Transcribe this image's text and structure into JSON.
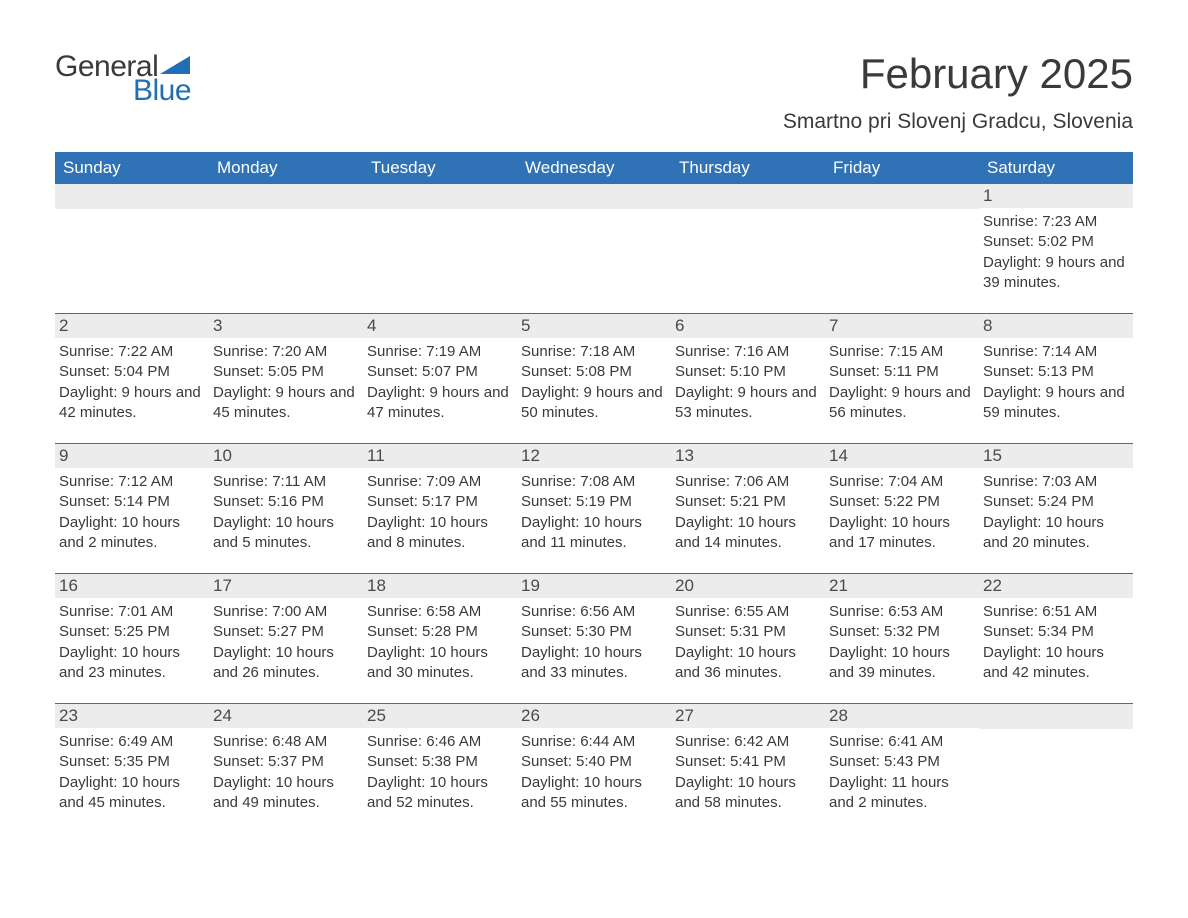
{
  "logo": {
    "text1": "General",
    "text2": "Blue",
    "text_color1": "#3a3a3a",
    "text_color2": "#1f6fb2",
    "shape_color": "#1f6fb2"
  },
  "header": {
    "month_title": "February 2025",
    "location": "Smartno pri Slovenj Gradcu, Slovenia"
  },
  "colors": {
    "header_bg": "#2f73b6",
    "header_text": "#ffffff",
    "daynum_bg": "#ececec",
    "body_text": "#3a3a3a",
    "row_border": "#2f73b6",
    "page_bg": "#ffffff"
  },
  "typography": {
    "month_title_fontsize": 42,
    "location_fontsize": 21,
    "weekday_fontsize": 17,
    "daynum_fontsize": 17,
    "detail_fontsize": 15,
    "font_family": "Segoe UI"
  },
  "weekdays": [
    "Sunday",
    "Monday",
    "Tuesday",
    "Wednesday",
    "Thursday",
    "Friday",
    "Saturday"
  ],
  "weeks": [
    [
      {
        "day": "",
        "sunrise": "",
        "sunset": "",
        "daylight": ""
      },
      {
        "day": "",
        "sunrise": "",
        "sunset": "",
        "daylight": ""
      },
      {
        "day": "",
        "sunrise": "",
        "sunset": "",
        "daylight": ""
      },
      {
        "day": "",
        "sunrise": "",
        "sunset": "",
        "daylight": ""
      },
      {
        "day": "",
        "sunrise": "",
        "sunset": "",
        "daylight": ""
      },
      {
        "day": "",
        "sunrise": "",
        "sunset": "",
        "daylight": ""
      },
      {
        "day": "1",
        "sunrise": "Sunrise: 7:23 AM",
        "sunset": "Sunset: 5:02 PM",
        "daylight": "Daylight: 9 hours and 39 minutes."
      }
    ],
    [
      {
        "day": "2",
        "sunrise": "Sunrise: 7:22 AM",
        "sunset": "Sunset: 5:04 PM",
        "daylight": "Daylight: 9 hours and 42 minutes."
      },
      {
        "day": "3",
        "sunrise": "Sunrise: 7:20 AM",
        "sunset": "Sunset: 5:05 PM",
        "daylight": "Daylight: 9 hours and 45 minutes."
      },
      {
        "day": "4",
        "sunrise": "Sunrise: 7:19 AM",
        "sunset": "Sunset: 5:07 PM",
        "daylight": "Daylight: 9 hours and 47 minutes."
      },
      {
        "day": "5",
        "sunrise": "Sunrise: 7:18 AM",
        "sunset": "Sunset: 5:08 PM",
        "daylight": "Daylight: 9 hours and 50 minutes."
      },
      {
        "day": "6",
        "sunrise": "Sunrise: 7:16 AM",
        "sunset": "Sunset: 5:10 PM",
        "daylight": "Daylight: 9 hours and 53 minutes."
      },
      {
        "day": "7",
        "sunrise": "Sunrise: 7:15 AM",
        "sunset": "Sunset: 5:11 PM",
        "daylight": "Daylight: 9 hours and 56 minutes."
      },
      {
        "day": "8",
        "sunrise": "Sunrise: 7:14 AM",
        "sunset": "Sunset: 5:13 PM",
        "daylight": "Daylight: 9 hours and 59 minutes."
      }
    ],
    [
      {
        "day": "9",
        "sunrise": "Sunrise: 7:12 AM",
        "sunset": "Sunset: 5:14 PM",
        "daylight": "Daylight: 10 hours and 2 minutes."
      },
      {
        "day": "10",
        "sunrise": "Sunrise: 7:11 AM",
        "sunset": "Sunset: 5:16 PM",
        "daylight": "Daylight: 10 hours and 5 minutes."
      },
      {
        "day": "11",
        "sunrise": "Sunrise: 7:09 AM",
        "sunset": "Sunset: 5:17 PM",
        "daylight": "Daylight: 10 hours and 8 minutes."
      },
      {
        "day": "12",
        "sunrise": "Sunrise: 7:08 AM",
        "sunset": "Sunset: 5:19 PM",
        "daylight": "Daylight: 10 hours and 11 minutes."
      },
      {
        "day": "13",
        "sunrise": "Sunrise: 7:06 AM",
        "sunset": "Sunset: 5:21 PM",
        "daylight": "Daylight: 10 hours and 14 minutes."
      },
      {
        "day": "14",
        "sunrise": "Sunrise: 7:04 AM",
        "sunset": "Sunset: 5:22 PM",
        "daylight": "Daylight: 10 hours and 17 minutes."
      },
      {
        "day": "15",
        "sunrise": "Sunrise: 7:03 AM",
        "sunset": "Sunset: 5:24 PM",
        "daylight": "Daylight: 10 hours and 20 minutes."
      }
    ],
    [
      {
        "day": "16",
        "sunrise": "Sunrise: 7:01 AM",
        "sunset": "Sunset: 5:25 PM",
        "daylight": "Daylight: 10 hours and 23 minutes."
      },
      {
        "day": "17",
        "sunrise": "Sunrise: 7:00 AM",
        "sunset": "Sunset: 5:27 PM",
        "daylight": "Daylight: 10 hours and 26 minutes."
      },
      {
        "day": "18",
        "sunrise": "Sunrise: 6:58 AM",
        "sunset": "Sunset: 5:28 PM",
        "daylight": "Daylight: 10 hours and 30 minutes."
      },
      {
        "day": "19",
        "sunrise": "Sunrise: 6:56 AM",
        "sunset": "Sunset: 5:30 PM",
        "daylight": "Daylight: 10 hours and 33 minutes."
      },
      {
        "day": "20",
        "sunrise": "Sunrise: 6:55 AM",
        "sunset": "Sunset: 5:31 PM",
        "daylight": "Daylight: 10 hours and 36 minutes."
      },
      {
        "day": "21",
        "sunrise": "Sunrise: 6:53 AM",
        "sunset": "Sunset: 5:32 PM",
        "daylight": "Daylight: 10 hours and 39 minutes."
      },
      {
        "day": "22",
        "sunrise": "Sunrise: 6:51 AM",
        "sunset": "Sunset: 5:34 PM",
        "daylight": "Daylight: 10 hours and 42 minutes."
      }
    ],
    [
      {
        "day": "23",
        "sunrise": "Sunrise: 6:49 AM",
        "sunset": "Sunset: 5:35 PM",
        "daylight": "Daylight: 10 hours and 45 minutes."
      },
      {
        "day": "24",
        "sunrise": "Sunrise: 6:48 AM",
        "sunset": "Sunset: 5:37 PM",
        "daylight": "Daylight: 10 hours and 49 minutes."
      },
      {
        "day": "25",
        "sunrise": "Sunrise: 6:46 AM",
        "sunset": "Sunset: 5:38 PM",
        "daylight": "Daylight: 10 hours and 52 minutes."
      },
      {
        "day": "26",
        "sunrise": "Sunrise: 6:44 AM",
        "sunset": "Sunset: 5:40 PM",
        "daylight": "Daylight: 10 hours and 55 minutes."
      },
      {
        "day": "27",
        "sunrise": "Sunrise: 6:42 AM",
        "sunset": "Sunset: 5:41 PM",
        "daylight": "Daylight: 10 hours and 58 minutes."
      },
      {
        "day": "28",
        "sunrise": "Sunrise: 6:41 AM",
        "sunset": "Sunset: 5:43 PM",
        "daylight": "Daylight: 11 hours and 2 minutes."
      },
      {
        "day": "",
        "sunrise": "",
        "sunset": "",
        "daylight": ""
      }
    ]
  ]
}
